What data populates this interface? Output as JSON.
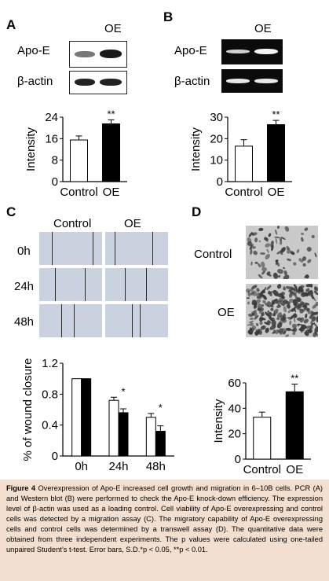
{
  "panels": {
    "A": {
      "label": "A",
      "column_header": "OE",
      "rows": [
        "Apo-E",
        "β-actin"
      ]
    },
    "B": {
      "label": "B",
      "column_header": "OE",
      "rows": [
        "Apo-E",
        "β-actin"
      ]
    },
    "C": {
      "label": "C",
      "column_headers": [
        "Control",
        "OE"
      ],
      "rows": [
        "0h",
        "24h",
        "48h"
      ]
    },
    "D": {
      "label": "D",
      "rows": [
        "Control",
        "OE"
      ]
    }
  },
  "caption": {
    "figure_label": "Figure 4",
    "text": " Overexpression of Apo-E increased cell growth and migration in 6–10B cells. PCR (A) and Western blot (B) were performed to check the Apo-E knock-down efficiency. The expression level of β-actin was used as a loading control. Cell viability of Apo-E overexpressing and control cells was detected by a migration assay (C). The migratory capability of Apo-E overexpressing cells and control cells was determined by a transwell assay (D). The quantitative data were obtained from three independent experiments. The p values were calculated using one-tailed unpaired Student’s t-test. Error bars, S.D.*p < 0.05, **p < 0.01."
  },
  "chart_data": [
    {
      "type": "bar",
      "panel": "A",
      "categories": [
        "Control",
        "OE"
      ],
      "values": [
        15.5,
        21.5
      ],
      "errors": [
        1.5,
        1.5
      ],
      "annotations": [
        "",
        "**"
      ],
      "ylabel": "Intensity",
      "yticks": [
        "0",
        "8",
        "16",
        "24"
      ],
      "ylim": [
        0,
        24
      ],
      "fills": [
        "#ffffff",
        "#000000"
      ]
    },
    {
      "type": "bar",
      "panel": "B",
      "categories": [
        "Control",
        "OE"
      ],
      "values": [
        16.5,
        26.5
      ],
      "errors": [
        3,
        2
      ],
      "annotations": [
        "",
        "**"
      ],
      "ylabel": "Intensity",
      "yticks": [
        "0",
        "10",
        "20",
        "30"
      ],
      "ylim": [
        0,
        30
      ],
      "fills": [
        "#ffffff",
        "#000000"
      ]
    },
    {
      "type": "bar",
      "panel": "C",
      "categories": [
        "0h",
        "24h",
        "48h"
      ],
      "series": [
        {
          "values": [
            1.0,
            0.72,
            0.5
          ],
          "errors": [
            0,
            0.04,
            0.05
          ],
          "fill": "#ffffff"
        },
        {
          "values": [
            1.0,
            0.56,
            0.32
          ],
          "errors": [
            0,
            0.05,
            0.07
          ],
          "fill": "#000000"
        }
      ],
      "annotations": [
        "",
        "*",
        "*"
      ],
      "ylabel": "% of wound closure",
      "yticks": [
        "0",
        "0.4",
        "0.8",
        "1.2"
      ],
      "ylim": [
        0,
        1.2
      ]
    },
    {
      "type": "bar",
      "panel": "D",
      "categories": [
        "Control",
        "OE"
      ],
      "values": [
        33,
        53
      ],
      "errors": [
        4,
        6
      ],
      "annotations": [
        "",
        "**"
      ],
      "ylabel": "Intensity",
      "yticks": [
        "0",
        "20",
        "40",
        "60"
      ],
      "ylim": [
        0,
        60
      ],
      "fills": [
        "#ffffff",
        "#000000"
      ]
    }
  ]
}
